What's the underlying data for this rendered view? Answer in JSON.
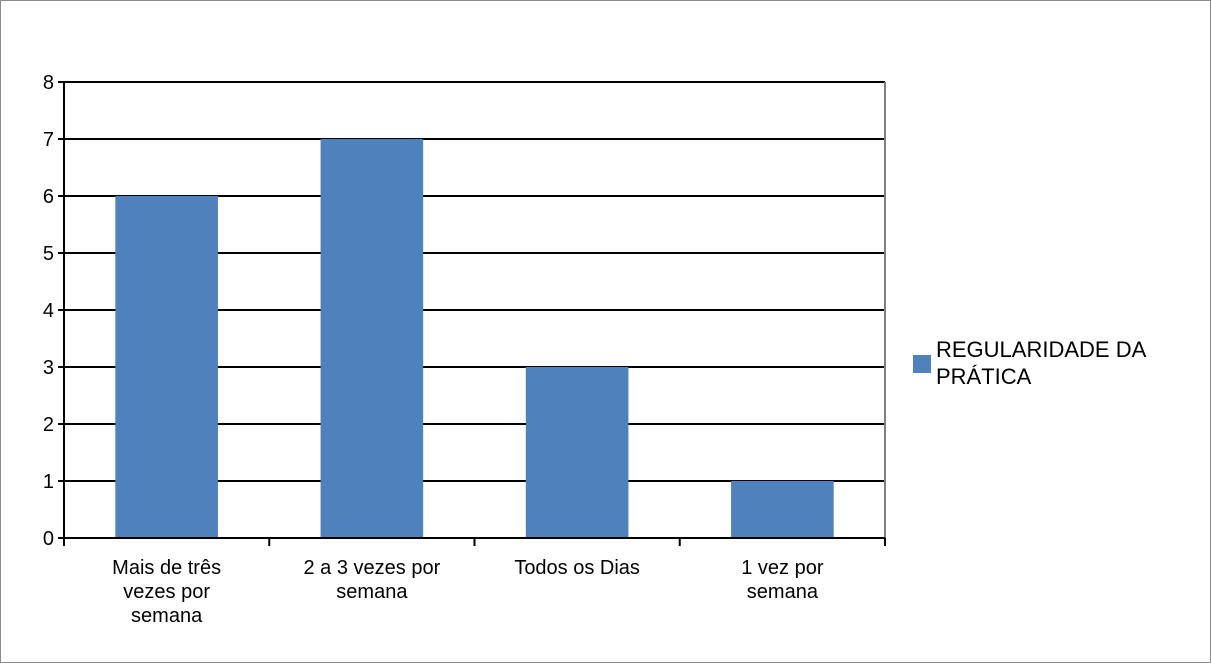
{
  "chart_data": {
    "type": "bar",
    "title": "",
    "xlabel": "",
    "ylabel": "",
    "categories": [
      [
        "Mais de três",
        "vezes por",
        "semana"
      ],
      [
        "2 a 3 vezes por",
        "semana"
      ],
      [
        "Todos os Dias"
      ],
      [
        "1 vez por",
        "semana"
      ]
    ],
    "series": [
      {
        "name": "REGULARIDADE DA PRÁTICA",
        "values": [
          6,
          7,
          3,
          1
        ],
        "color": "#4f81bd"
      }
    ],
    "ylim": [
      0,
      8
    ],
    "yticks": [
      "0",
      "1",
      "2",
      "3",
      "4",
      "5",
      "6",
      "7",
      "8"
    ],
    "grid": true,
    "legend": "right"
  }
}
